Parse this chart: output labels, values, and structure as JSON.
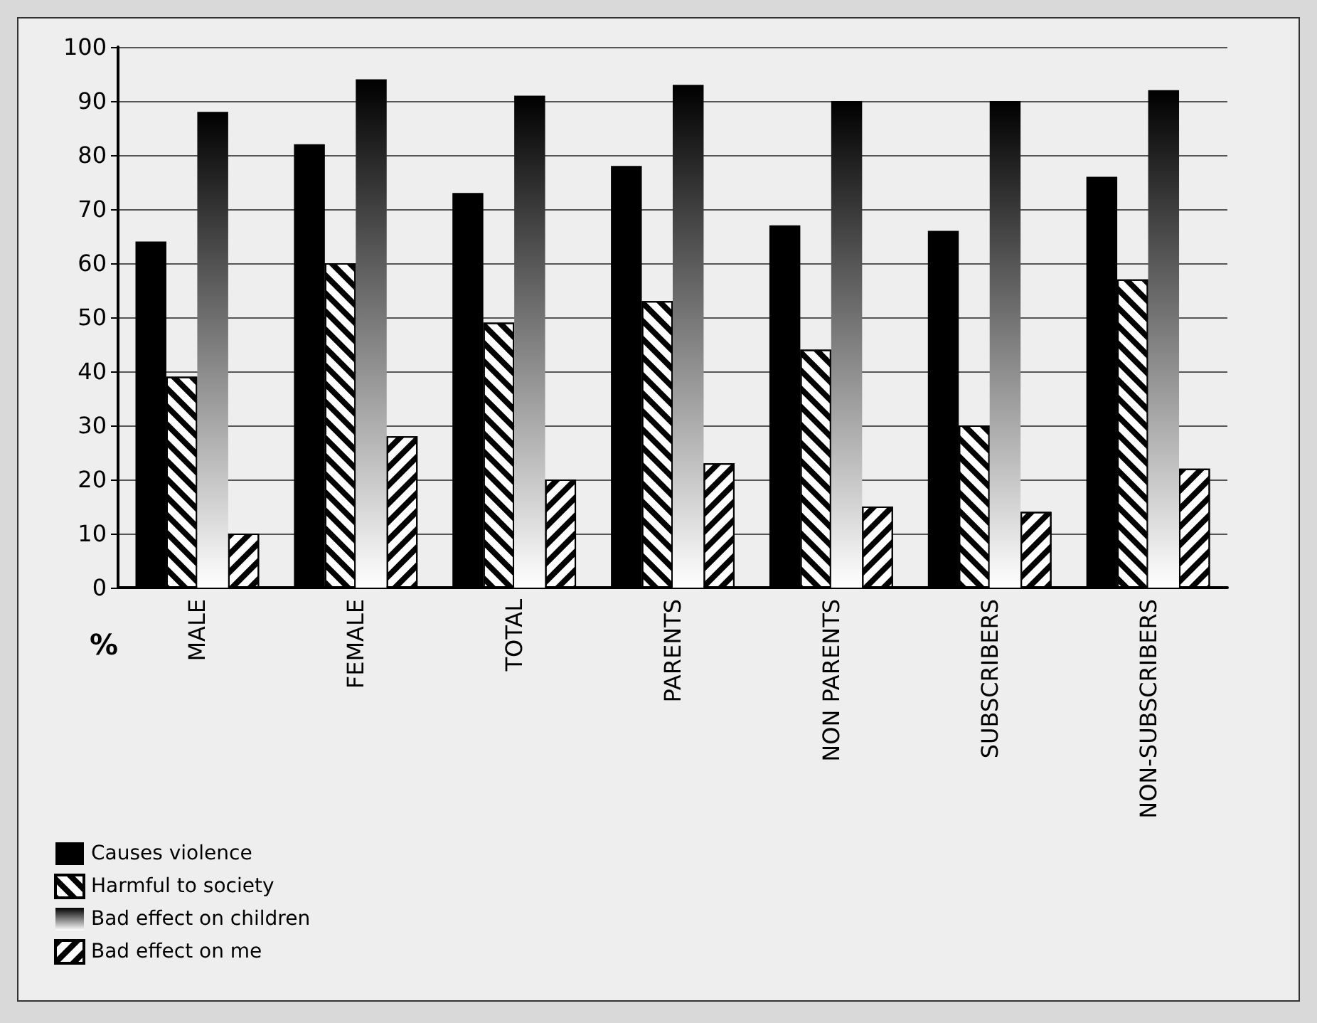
{
  "chart_data": {
    "type": "bar",
    "ylabel": "%",
    "categories": [
      "MALE",
      "FEMALE",
      "TOTAL",
      "PARENTS",
      "NON PARENTS",
      "SUBSCRIBERS",
      "NON-SUBSCRIBERS"
    ],
    "series": [
      {
        "name": "Causes violence",
        "color": "#000000",
        "values": [
          64,
          82,
          73,
          78,
          67,
          66,
          76
        ]
      },
      {
        "name": "Harmful to society",
        "color": "#000000",
        "values": [
          39,
          60,
          49,
          53,
          44,
          30,
          57
        ]
      },
      {
        "name": "Bad effect on children",
        "color": "#808080",
        "values": [
          88,
          94,
          91,
          93,
          90,
          90,
          92
        ]
      },
      {
        "name": "Bad effect on me",
        "color": "#000000",
        "values": [
          10,
          28,
          20,
          23,
          15,
          14,
          22
        ]
      }
    ],
    "ylim": [
      0,
      100
    ],
    "yticks": [
      0,
      10,
      20,
      30,
      40,
      50,
      60,
      70,
      80,
      90,
      100
    ],
    "grid": "y",
    "legend": "bottom left"
  }
}
